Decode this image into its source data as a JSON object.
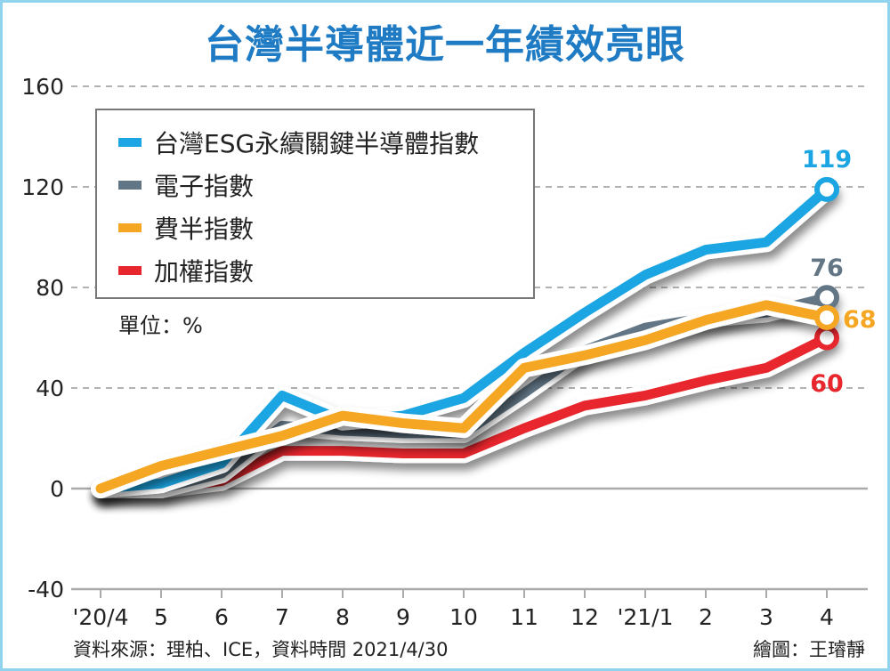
{
  "title": "台灣半導體近一年績效亮眼",
  "unit": "單位：%",
  "source": "資料來源：理柏、ICE，資料時間 2021/4/30",
  "credit": "繪圖：王璿靜",
  "chart_data": {
    "type": "line",
    "title": "台灣半導體近一年績效亮眼",
    "categories": [
      "'20/4",
      "5",
      "6",
      "7",
      "8",
      "9",
      "10",
      "11",
      "12",
      "'21/1",
      "2",
      "3",
      "4"
    ],
    "ylim": [
      -40,
      160
    ],
    "yticks": [
      "160",
      "120",
      "80",
      "40",
      "0",
      "-40"
    ],
    "ytick_values": [
      160,
      120,
      80,
      40,
      0,
      -40
    ],
    "grid": "dashed horizontal",
    "legend": "top-left",
    "series": [
      {
        "name": "台灣ESG永續關鍵半導體指數",
        "color": "#1ba5e2",
        "values": [
          0,
          2,
          10,
          37,
          27,
          29,
          36,
          54,
          70,
          85,
          95,
          98,
          119
        ],
        "end_label": "119"
      },
      {
        "name": "電子指數",
        "color": "#627686",
        "values": [
          0,
          0,
          6,
          25,
          23,
          22,
          22,
          38,
          55,
          64,
          68,
          70,
          76
        ],
        "end_label": "76"
      },
      {
        "name": "費半指數",
        "color": "#f5a623",
        "values": [
          0,
          9,
          15,
          21,
          29,
          26,
          24,
          48,
          53,
          59,
          67,
          73,
          68
        ],
        "end_label": "68"
      },
      {
        "name": "加權指數",
        "color": "#e8262d",
        "values": [
          0,
          0,
          3,
          15,
          15,
          14,
          14,
          24,
          33,
          37,
          43,
          48,
          60
        ],
        "end_label": "60"
      }
    ]
  }
}
